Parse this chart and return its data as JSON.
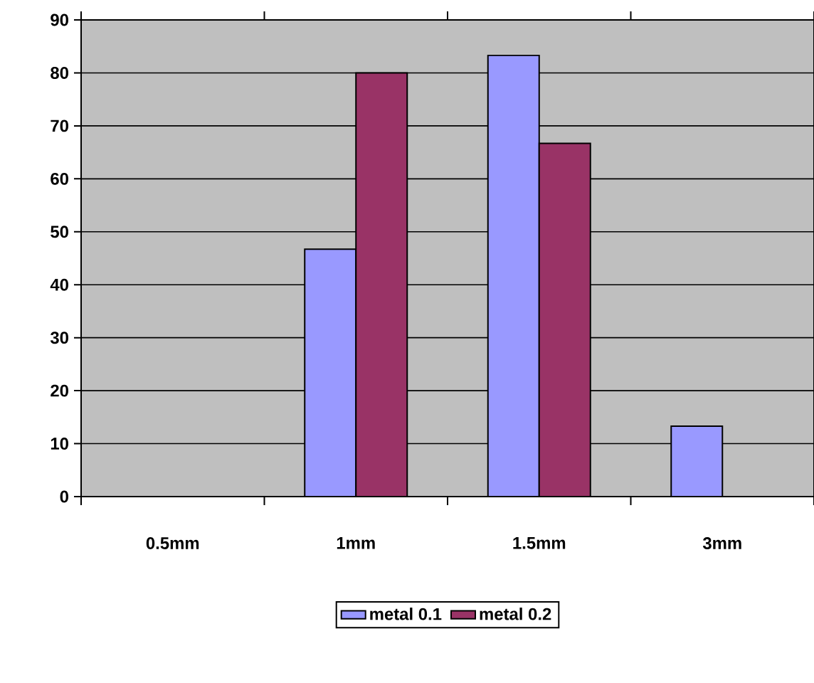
{
  "chart_data": {
    "type": "bar",
    "categories": [
      "0.5mm",
      "1mm",
      "1.5mm",
      "3mm"
    ],
    "series": [
      {
        "name": "metal 0.1",
        "color": "#9999ff",
        "values": [
          0,
          46.7,
          83.3,
          13.3
        ]
      },
      {
        "name": "metal 0.2",
        "color": "#993366",
        "values": [
          0,
          80,
          66.7,
          0
        ]
      }
    ],
    "ylim": [
      0,
      90
    ],
    "yticks": [
      0,
      10,
      20,
      30,
      40,
      50,
      60,
      70,
      80,
      90
    ],
    "grid": "y",
    "legend": "bottom"
  }
}
